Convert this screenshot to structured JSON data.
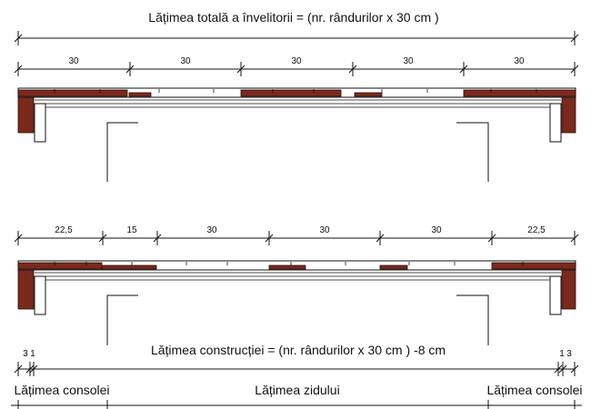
{
  "header": {
    "title": "Lățimea totală a învelitorii = (nr. rândurilor x 30 cm )"
  },
  "top_row": {
    "dimensions": [
      "30",
      "30",
      "30",
      "30",
      "30"
    ]
  },
  "bottom_row": {
    "dimensions": [
      "22,5",
      "15",
      "30",
      "30",
      "30",
      "22,5"
    ]
  },
  "construction": {
    "caption": "Lățimea construcției = (nr. rândurilor x 30 cm ) -8 cm",
    "left_offsets": [
      "3",
      "1"
    ],
    "right_offsets": [
      "1",
      "3"
    ]
  },
  "footer": {
    "left_label": "Lățimea consolei",
    "center_label": "Lățimea zidului",
    "right_label": "Lățimea consolei"
  },
  "colors": {
    "tile": "#7a2a1d",
    "line": "#111111"
  }
}
